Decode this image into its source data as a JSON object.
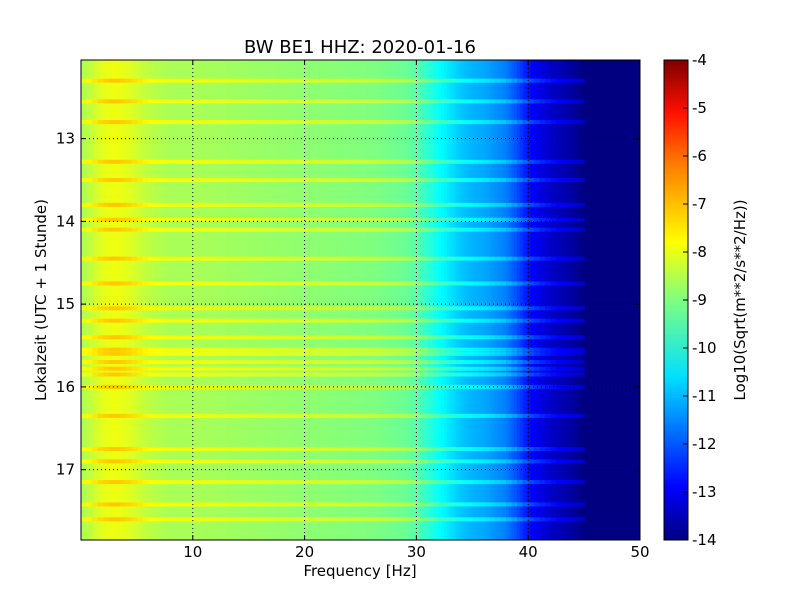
{
  "chart_data": {
    "type": "heatmap",
    "title": "BW BE1 HHZ: 2020-01-16",
    "xlabel": "Frequency [Hz]",
    "ylabel": "Lokalzeit (UTC + 1 Stunde)",
    "xlim": [
      0,
      50
    ],
    "ylim": [
      17.85,
      12.05
    ],
    "y_inverted": true,
    "xticks": [
      "10",
      "20",
      "30",
      "40",
      "50"
    ],
    "yticks": [
      "13",
      "14",
      "15",
      "16",
      "17"
    ],
    "grid": true,
    "colormap": "jet",
    "colorbar": {
      "label": "Log10(Sqrt(m**2/s**2/Hz))",
      "min": -14,
      "max": -4,
      "ticks": [
        "-4",
        "-5",
        "-6",
        "-7",
        "-8",
        "-9",
        "-10",
        "-11",
        "-12",
        "-13",
        "-14"
      ]
    },
    "profile": {
      "frequency_hz": [
        0,
        1,
        2,
        3,
        4,
        5,
        6,
        8,
        10,
        14,
        18,
        22,
        26,
        29,
        30,
        31,
        32,
        33,
        34,
        35,
        36,
        37,
        38,
        39,
        40,
        41,
        42,
        43,
        44,
        45,
        46,
        48,
        50
      ],
      "value": [
        -8.6,
        -8.3,
        -8.0,
        -7.9,
        -8.0,
        -8.2,
        -8.4,
        -8.6,
        -8.6,
        -8.7,
        -8.8,
        -8.9,
        -9.0,
        -9.2,
        -9.4,
        -9.8,
        -10.2,
        -10.5,
        -10.8,
        -11.0,
        -11.1,
        -11.3,
        -11.5,
        -12.0,
        -12.6,
        -13.0,
        -13.3,
        -13.5,
        -13.7,
        -14.0,
        -14.0,
        -14.0,
        -14.0
      ]
    },
    "bright_bands_hour": [
      12.3,
      12.55,
      12.8,
      13.28,
      13.5,
      13.8,
      13.98,
      14.1,
      14.45,
      14.75,
      15.05,
      15.2,
      15.4,
      15.55,
      15.6,
      15.7,
      15.78,
      15.85,
      16.0,
      16.35,
      16.75,
      16.9,
      17.15,
      17.42,
      17.6
    ]
  }
}
